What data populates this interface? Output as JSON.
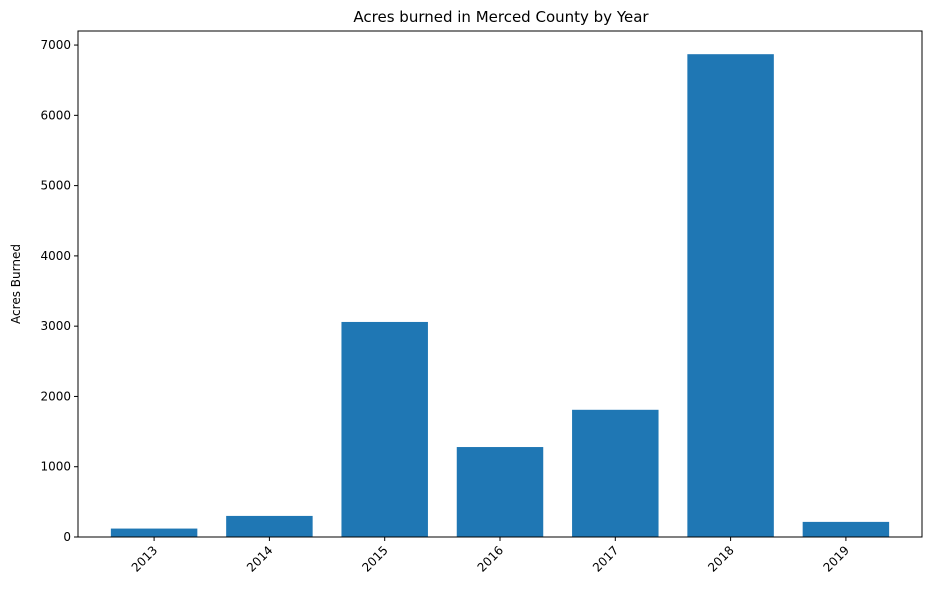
{
  "chart_data": {
    "type": "bar",
    "title": "Acres burned in Merced County by Year",
    "xlabel": "",
    "ylabel": "Acres Burned",
    "categories": [
      "2013",
      "2014",
      "2015",
      "2016",
      "2017",
      "2018",
      "2019"
    ],
    "values": [
      120,
      300,
      3060,
      1280,
      1810,
      6870,
      215
    ],
    "ylim": [
      0,
      7200
    ],
    "yticks": [
      0,
      1000,
      2000,
      3000,
      4000,
      5000,
      6000,
      7000
    ],
    "bar_color": "#1f77b4",
    "grid": false
  }
}
